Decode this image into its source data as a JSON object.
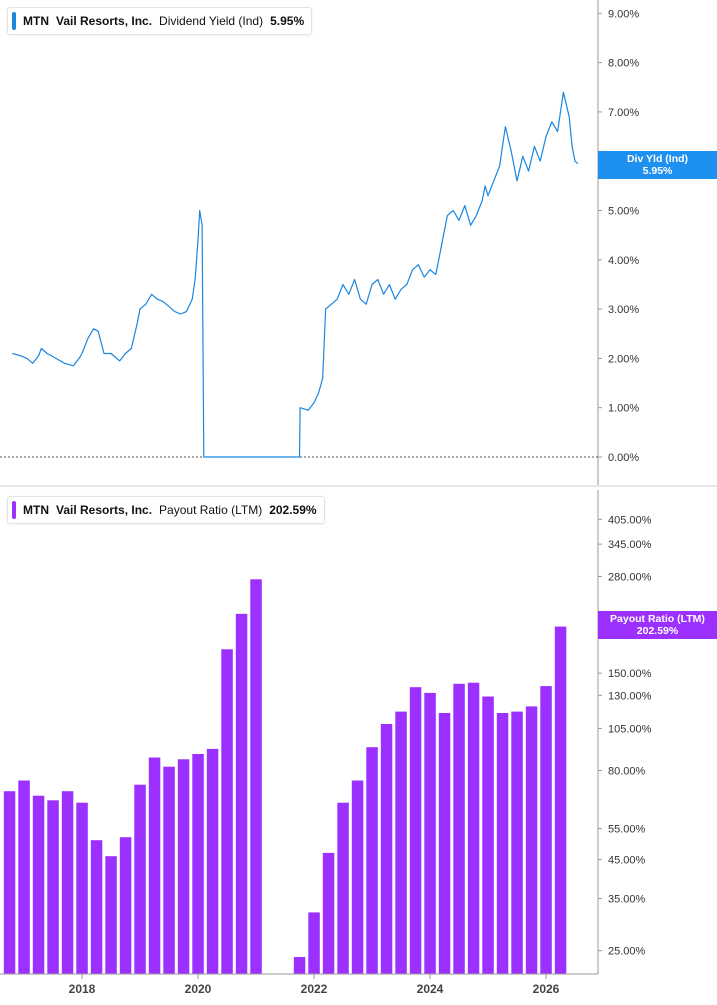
{
  "colors": {
    "yield_line": "#1a86e0",
    "yield_tag": "#1e90f0",
    "payout_bar": "#9b30ff",
    "payout_tag": "#9b30ff",
    "axis": "#999999",
    "zero_line": "#555555"
  },
  "top_legend": {
    "ticker": "MTN",
    "company": "Vail Resorts, Inc.",
    "metric": "Dividend Yield (Ind)",
    "value": "5.95%"
  },
  "top_tag": {
    "label": "Div Yld (Ind)",
    "value": "5.95%"
  },
  "bottom_legend": {
    "ticker": "MTN",
    "company": "Vail Resorts, Inc.",
    "metric": "Payout Ratio (LTM)",
    "value": "202.59%"
  },
  "bottom_tag": {
    "label": "Payout Ratio (LTM)",
    "value": "202.59%"
  },
  "chart_data": [
    {
      "type": "line",
      "title": "Dividend Yield (Ind)",
      "ylim": [
        0,
        9.3
      ],
      "y_ticks": [
        "9.00%",
        "8.00%",
        "7.00%",
        "6.00%",
        "5.00%",
        "4.00%",
        "3.00%",
        "2.00%",
        "1.00%",
        "0.00%"
      ],
      "y_tick_values": [
        9,
        8,
        7,
        6,
        5,
        4,
        3,
        2,
        1,
        0
      ],
      "points": [
        [
          2016.8,
          2.1
        ],
        [
          2016.95,
          2.05
        ],
        [
          2017.05,
          2.0
        ],
        [
          2017.15,
          1.9
        ],
        [
          2017.25,
          2.05
        ],
        [
          2017.3,
          2.2
        ],
        [
          2017.4,
          2.1
        ],
        [
          2017.55,
          2.0
        ],
        [
          2017.7,
          1.9
        ],
        [
          2017.85,
          1.85
        ],
        [
          2017.95,
          2.0
        ],
        [
          2018.0,
          2.1
        ],
        [
          2018.1,
          2.4
        ],
        [
          2018.2,
          2.6
        ],
        [
          2018.28,
          2.55
        ],
        [
          2018.38,
          2.1
        ],
        [
          2018.5,
          2.1
        ],
        [
          2018.65,
          1.95
        ],
        [
          2018.75,
          2.1
        ],
        [
          2018.85,
          2.2
        ],
        [
          2018.95,
          2.7
        ],
        [
          2019.0,
          3.0
        ],
        [
          2019.1,
          3.1
        ],
        [
          2019.2,
          3.3
        ],
        [
          2019.3,
          3.2
        ],
        [
          2019.4,
          3.15
        ],
        [
          2019.5,
          3.05
        ],
        [
          2019.6,
          2.95
        ],
        [
          2019.7,
          2.9
        ],
        [
          2019.8,
          2.95
        ],
        [
          2019.9,
          3.2
        ],
        [
          2019.95,
          3.6
        ],
        [
          2020.0,
          4.4
        ],
        [
          2020.03,
          5.0
        ],
        [
          2020.07,
          4.7
        ],
        [
          2020.1,
          0.0
        ],
        [
          2020.5,
          0.0
        ],
        [
          2021.0,
          0.0
        ],
        [
          2021.5,
          0.0
        ],
        [
          2021.75,
          0.0
        ],
        [
          2021.76,
          1.0
        ],
        [
          2021.9,
          0.95
        ],
        [
          2022.0,
          1.1
        ],
        [
          2022.08,
          1.3
        ],
        [
          2022.15,
          1.6
        ],
        [
          2022.2,
          3.0
        ],
        [
          2022.3,
          3.1
        ],
        [
          2022.4,
          3.2
        ],
        [
          2022.5,
          3.5
        ],
        [
          2022.6,
          3.3
        ],
        [
          2022.7,
          3.6
        ],
        [
          2022.8,
          3.2
        ],
        [
          2022.9,
          3.1
        ],
        [
          2023.0,
          3.5
        ],
        [
          2023.1,
          3.6
        ],
        [
          2023.2,
          3.3
        ],
        [
          2023.3,
          3.5
        ],
        [
          2023.4,
          3.2
        ],
        [
          2023.5,
          3.4
        ],
        [
          2023.6,
          3.5
        ],
        [
          2023.7,
          3.8
        ],
        [
          2023.8,
          3.9
        ],
        [
          2023.9,
          3.65
        ],
        [
          2024.0,
          3.8
        ],
        [
          2024.1,
          3.7
        ],
        [
          2024.2,
          4.3
        ],
        [
          2024.3,
          4.9
        ],
        [
          2024.4,
          5.0
        ],
        [
          2024.5,
          4.8
        ],
        [
          2024.6,
          5.1
        ],
        [
          2024.7,
          4.7
        ],
        [
          2024.8,
          4.9
        ],
        [
          2024.9,
          5.2
        ],
        [
          2024.95,
          5.5
        ],
        [
          2025.0,
          5.3
        ],
        [
          2025.1,
          5.6
        ],
        [
          2025.2,
          5.9
        ],
        [
          2025.3,
          6.7
        ],
        [
          2025.4,
          6.2
        ],
        [
          2025.5,
          5.6
        ],
        [
          2025.6,
          6.1
        ],
        [
          2025.7,
          5.8
        ],
        [
          2025.8,
          6.3
        ],
        [
          2025.9,
          6.0
        ],
        [
          2026.0,
          6.5
        ],
        [
          2026.1,
          6.8
        ],
        [
          2026.2,
          6.6
        ],
        [
          2026.3,
          7.4
        ],
        [
          2026.4,
          6.9
        ],
        [
          2026.45,
          6.3
        ],
        [
          2026.5,
          6.0
        ],
        [
          2026.55,
          5.95
        ]
      ]
    },
    {
      "type": "bar",
      "title": "Payout Ratio (LTM)",
      "ylim": [
        21.5,
        480
      ],
      "yscale": "log",
      "y_ticks": [
        "405.00%",
        "345.00%",
        "280.00%",
        "150.00%",
        "130.00%",
        "105.00%",
        "80.00%",
        "55.00%",
        "45.00%",
        "35.00%",
        "25.00%"
      ],
      "y_tick_values": [
        405,
        345,
        280,
        150,
        130,
        105,
        80,
        55,
        45,
        35,
        25
      ],
      "series": [
        {
          "name": "Payout Ratio (LTM)",
          "values": [
            [
              2016.75,
              70
            ],
            [
              2017.0,
              75
            ],
            [
              2017.25,
              68
            ],
            [
              2017.5,
              66
            ],
            [
              2017.75,
              70
            ],
            [
              2018.0,
              65
            ],
            [
              2018.25,
              51
            ],
            [
              2018.5,
              46
            ],
            [
              2018.75,
              52
            ],
            [
              2019.0,
              73
            ],
            [
              2019.25,
              87
            ],
            [
              2019.5,
              82
            ],
            [
              2019.75,
              86
            ],
            [
              2020.0,
              89
            ],
            [
              2020.25,
              92
            ],
            [
              2020.5,
              175
            ],
            [
              2020.75,
              220
            ],
            [
              2021.0,
              275
            ],
            [
              2021.75,
              24
            ],
            [
              2022.0,
              32
            ],
            [
              2022.25,
              47
            ],
            [
              2022.5,
              65
            ],
            [
              2022.75,
              75
            ],
            [
              2023.0,
              93
            ],
            [
              2023.25,
              108
            ],
            [
              2023.5,
              117
            ],
            [
              2023.75,
              137
            ],
            [
              2024.0,
              132
            ],
            [
              2024.25,
              116
            ],
            [
              2024.5,
              140
            ],
            [
              2024.75,
              141
            ],
            [
              2025.0,
              129
            ],
            [
              2025.25,
              116
            ],
            [
              2025.5,
              117
            ],
            [
              2025.75,
              121
            ],
            [
              2026.0,
              138
            ],
            [
              2026.25,
              202.59
            ]
          ]
        }
      ]
    }
  ],
  "x_axis": {
    "labels": [
      "2018",
      "2020",
      "2022",
      "2024",
      "2026"
    ],
    "values": [
      2018,
      2020,
      2022,
      2024,
      2026
    ]
  }
}
